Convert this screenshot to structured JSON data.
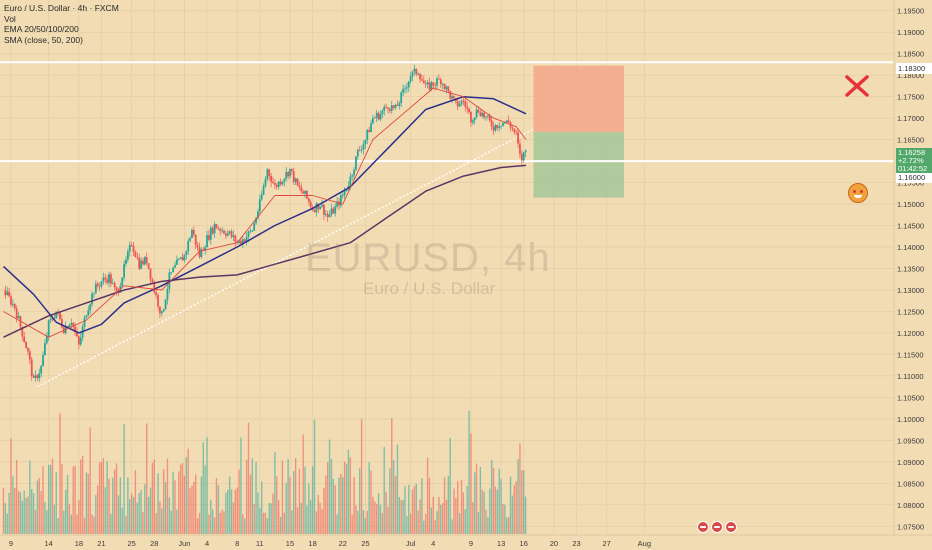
{
  "header": {
    "title": "Euro / U.S. Dollar · 4h · FXCM",
    "indicators": [
      "Vol",
      "EMA 20/50/100/200",
      "SMA (close, 50, 200)"
    ]
  },
  "watermark": {
    "symbol": "EURUSD, 4h",
    "description": "Euro / U.S. Dollar"
  },
  "price_labels": {
    "resistance": "1.18300",
    "current_price": "1.16258",
    "current_change": "+2.72%",
    "countdown": "01:42:52",
    "support": "1.16000"
  },
  "colors": {
    "background": "#f2dcb4",
    "bull_candle": "#26a69a",
    "bear_candle": "#ef5350",
    "ema_short": "#e0483e",
    "ema_mid": "#2a2f8a",
    "sma_long": "#5a3565",
    "stop_zone": "#f5a78a",
    "target_zone": "#a9c89a",
    "horizontal_lines": "#ffffff",
    "trendline": "#ffffff",
    "cross_mark": "#e8323a"
  },
  "chart_data": {
    "type": "candlestick",
    "symbol": "EURUSD",
    "timeframe": "4h",
    "y_axis_side": "right",
    "ylim": [
      1.0725,
      1.1975
    ],
    "y_ticks": [
      "1.07500",
      "1.08000",
      "1.08500",
      "1.09000",
      "1.09500",
      "1.10000",
      "1.10500",
      "1.11000",
      "1.11500",
      "1.12000",
      "1.12500",
      "1.13000",
      "1.13500",
      "1.14000",
      "1.14500",
      "1.15000",
      "1.15500",
      "1.16000",
      "1.16500",
      "1.17000",
      "1.17500",
      "1.18000",
      "1.18500",
      "1.19000",
      "1.19500"
    ],
    "x_ticks": [
      {
        "label": "9",
        "day": 0
      },
      {
        "label": "14",
        "day": 5
      },
      {
        "label": "18",
        "day": 9
      },
      {
        "label": "21",
        "day": 12
      },
      {
        "label": "25",
        "day": 16
      },
      {
        "label": "28",
        "day": 19
      },
      {
        "label": "Jun",
        "day": 23
      },
      {
        "label": "4",
        "day": 26
      },
      {
        "label": "8",
        "day": 30
      },
      {
        "label": "11",
        "day": 33
      },
      {
        "label": "15",
        "day": 37
      },
      {
        "label": "18",
        "day": 40
      },
      {
        "label": "22",
        "day": 44
      },
      {
        "label": "25",
        "day": 47
      },
      {
        "label": "Jul",
        "day": 53
      },
      {
        "label": "4",
        "day": 56
      },
      {
        "label": "9",
        "day": 61
      },
      {
        "label": "13",
        "day": 65
      },
      {
        "label": "16",
        "day": 68
      },
      {
        "label": "20",
        "day": 72
      },
      {
        "label": "23",
        "day": 75
      },
      {
        "label": "27",
        "day": 79
      },
      {
        "label": "Aug",
        "day": 84
      }
    ],
    "price_path": [
      [
        -1,
        1.13
      ],
      [
        0.5,
        1.126
      ],
      [
        1.5,
        1.12
      ],
      [
        2.3,
        1.115
      ],
      [
        3.0,
        1.1085
      ],
      [
        4.0,
        1.112
      ],
      [
        5.0,
        1.122
      ],
      [
        6.0,
        1.125
      ],
      [
        7.0,
        1.121
      ],
      [
        8.0,
        1.123
      ],
      [
        9.0,
        1.117
      ],
      [
        10.0,
        1.125
      ],
      [
        11.0,
        1.13
      ],
      [
        12.0,
        1.132
      ],
      [
        13.0,
        1.133
      ],
      [
        14.0,
        1.129
      ],
      [
        15.0,
        1.135
      ],
      [
        16.0,
        1.141
      ],
      [
        17.0,
        1.136
      ],
      [
        18.0,
        1.137
      ],
      [
        19.0,
        1.13
      ],
      [
        20.0,
        1.124
      ],
      [
        21.0,
        1.133
      ],
      [
        22.0,
        1.136
      ],
      [
        23.0,
        1.138
      ],
      [
        24.0,
        1.144
      ],
      [
        25.0,
        1.138
      ],
      [
        26.0,
        1.142
      ],
      [
        27.0,
        1.145
      ],
      [
        28.0,
        1.144
      ],
      [
        29.0,
        1.143
      ],
      [
        30.0,
        1.141
      ],
      [
        31.0,
        1.142
      ],
      [
        32.0,
        1.144
      ],
      [
        33.0,
        1.15
      ],
      [
        34.0,
        1.158
      ],
      [
        35.0,
        1.154
      ],
      [
        36.0,
        1.156
      ],
      [
        37.0,
        1.158
      ],
      [
        38.0,
        1.154
      ],
      [
        39.0,
        1.152
      ],
      [
        40.0,
        1.149
      ],
      [
        41.0,
        1.15
      ],
      [
        42.0,
        1.147
      ],
      [
        43.0,
        1.149
      ],
      [
        44.0,
        1.152
      ],
      [
        45.0,
        1.156
      ],
      [
        46.0,
        1.162
      ],
      [
        47.0,
        1.165
      ],
      [
        48.0,
        1.17
      ],
      [
        49.0,
        1.171
      ],
      [
        50.0,
        1.173
      ],
      [
        51.0,
        1.172
      ],
      [
        52.0,
        1.176
      ],
      [
        53.0,
        1.18
      ],
      [
        54.0,
        1.181
      ],
      [
        55.0,
        1.177
      ],
      [
        56.0,
        1.178
      ],
      [
        57.0,
        1.179
      ],
      [
        58.0,
        1.176
      ],
      [
        59.0,
        1.173
      ],
      [
        60.0,
        1.174
      ],
      [
        61.0,
        1.17
      ],
      [
        62.0,
        1.172
      ],
      [
        63.0,
        1.17
      ],
      [
        64.0,
        1.168
      ],
      [
        65.0,
        1.169
      ],
      [
        66.0,
        1.169
      ],
      [
        67.0,
        1.166
      ],
      [
        67.6,
        1.16
      ],
      [
        68.3,
        1.1626
      ]
    ],
    "ema_20": [
      [
        -1,
        1.125
      ],
      [
        5,
        1.119
      ],
      [
        10,
        1.123
      ],
      [
        15,
        1.131
      ],
      [
        20,
        1.13
      ],
      [
        25,
        1.139
      ],
      [
        30,
        1.141
      ],
      [
        35,
        1.152
      ],
      [
        40,
        1.152
      ],
      [
        44,
        1.15
      ],
      [
        48,
        1.165
      ],
      [
        52,
        1.171
      ],
      [
        56,
        1.177
      ],
      [
        60,
        1.175
      ],
      [
        64,
        1.17
      ],
      [
        67,
        1.168
      ],
      [
        68.3,
        1.165
      ]
    ],
    "ema_50": [
      [
        -1,
        1.1355
      ],
      [
        3,
        1.129
      ],
      [
        6,
        1.1225
      ],
      [
        9,
        1.12
      ],
      [
        12,
        1.122
      ],
      [
        15,
        1.127
      ],
      [
        20,
        1.131
      ],
      [
        25,
        1.1355
      ],
      [
        30,
        1.14
      ],
      [
        35,
        1.145
      ],
      [
        40,
        1.149
      ],
      [
        45,
        1.154
      ],
      [
        50,
        1.163
      ],
      [
        55,
        1.172
      ],
      [
        60,
        1.175
      ],
      [
        64,
        1.1745
      ],
      [
        68.3,
        1.171
      ]
    ],
    "sma_200": [
      [
        -1,
        1.119
      ],
      [
        5,
        1.124
      ],
      [
        10,
        1.127
      ],
      [
        15,
        1.13
      ],
      [
        20,
        1.132
      ],
      [
        25,
        1.133
      ],
      [
        30,
        1.1335
      ],
      [
        35,
        1.136
      ],
      [
        40,
        1.1385
      ],
      [
        45,
        1.141
      ],
      [
        50,
        1.147
      ],
      [
        55,
        1.153
      ],
      [
        60,
        1.1565
      ],
      [
        65,
        1.1585
      ],
      [
        68.3,
        1.159
      ]
    ],
    "trendline": {
      "from": [
        3.5,
        1.1075
      ],
      "to": [
        69.3,
        1.1675
      ]
    },
    "horizontal_levels": [
      1.183,
      1.16
    ],
    "trade_box": {
      "day_start": 69.3,
      "day_end": 81.3,
      "top": 1.1822,
      "entry": 1.1668,
      "bottom": 1.1515
    },
    "volume": {
      "max": 100,
      "end_day": 68.3
    }
  }
}
